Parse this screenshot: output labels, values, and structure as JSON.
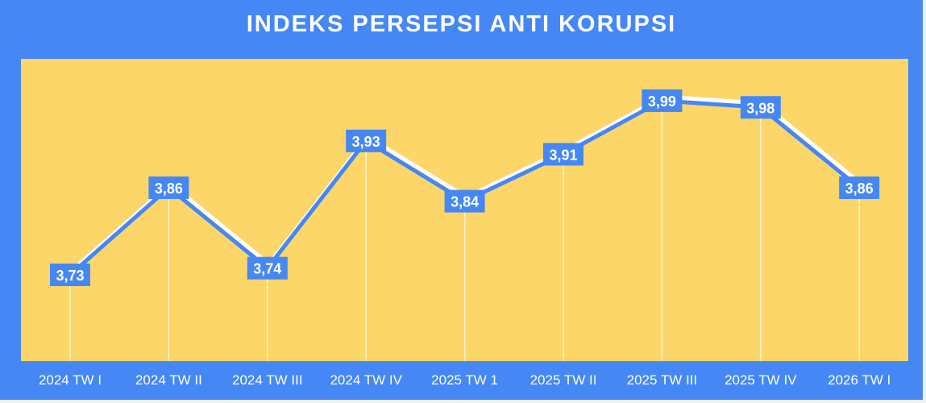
{
  "chart_data": {
    "type": "line",
    "title": "INDEKS PERSEPSI ANTI KORUPSI",
    "categories": [
      "2024 TW I",
      "2024 TW II",
      "2024 TW III",
      "2024 TW IV",
      "2025 TW 1",
      "2025 TW II",
      "2025 TW III",
      "2025 TW IV",
      "2026 TW I"
    ],
    "values": [
      3.73,
      3.86,
      3.74,
      3.93,
      3.84,
      3.91,
      3.99,
      3.98,
      3.86
    ],
    "data_labels": [
      "3,73",
      "3,86",
      "3,74",
      "3,93",
      "3,84",
      "3,91",
      "3,99",
      "3,98",
      "3,86"
    ],
    "grid": false,
    "legend": "none",
    "colors": {
      "frame": "#4587f4",
      "plot_background": "#fdd66a",
      "line": "#4587f4",
      "label_box": "#4587f4",
      "text": "#ffffff"
    }
  }
}
